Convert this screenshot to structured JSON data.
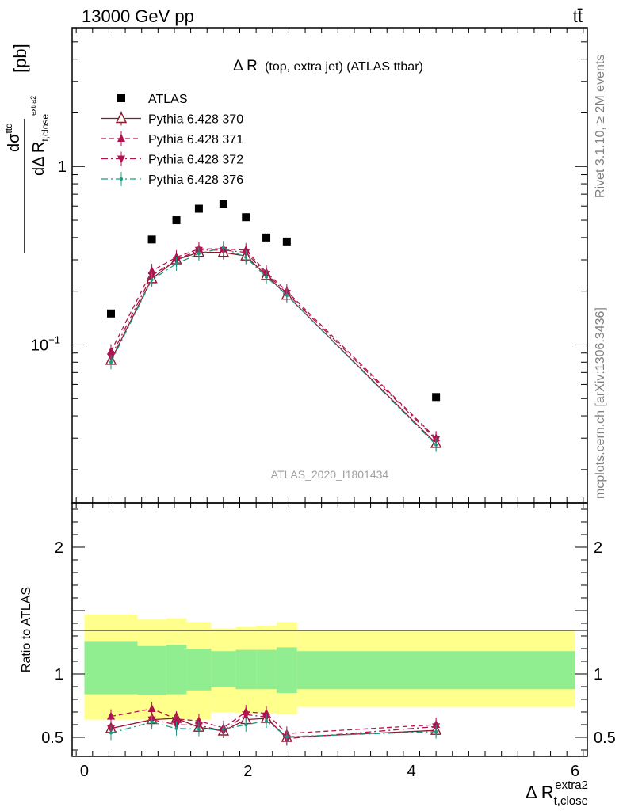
{
  "header": {
    "left_label": "13000 GeV pp",
    "right_label": "tt̄"
  },
  "side_labels": {
    "rivet": "Rivet 3.1.10, ≥ 2M events",
    "mcplots": "mcplots.cern.ch [arXiv:1306.3436]"
  },
  "chart_data": [
    {
      "type": "scatter",
      "panel": "main",
      "title_main": "Δ R",
      "title_detail": "(top, extra jet) (ATLAS ttbar)",
      "ylabel": {
        "num": "dσ",
        "num_sup": "ttd",
        "den": "dΔ R",
        "den_sub": "t,close",
        "den_sup": "extra2",
        "unit": "[pb]"
      },
      "yscale": "log",
      "ylim": [
        0.013,
        6.0
      ],
      "xlim": [
        -0.15,
        6.15
      ],
      "y_tick_labels": [
        {
          "value": 1,
          "base": "1",
          "exp": ""
        },
        {
          "value": 0.1,
          "base": "10",
          "exp": "−1"
        }
      ],
      "watermark": "ATLAS_2020_I1801434",
      "legend_position": "top-left",
      "series": [
        {
          "name": "ATLAS",
          "marker": "square",
          "color": "#000000",
          "x": [
            0.325,
            0.825,
            1.125,
            1.4,
            1.7,
            1.975,
            2.225,
            2.475,
            4.3
          ],
          "y": [
            0.15,
            0.39,
            0.5,
            0.58,
            0.62,
            0.52,
            0.4,
            0.38,
            0.051
          ]
        },
        {
          "name": "Pythia 6.428 370",
          "marker": "triangle-up-open",
          "line": "solid",
          "color": "#8b1a2f",
          "x": [
            0.325,
            0.825,
            1.125,
            1.4,
            1.7,
            1.975,
            2.225,
            2.475,
            4.3
          ],
          "y": [
            0.082,
            0.235,
            0.3,
            0.33,
            0.33,
            0.315,
            0.245,
            0.19,
            0.028
          ]
        },
        {
          "name": "Pythia 6.428 371",
          "marker": "triangle-up",
          "line": "dashed",
          "color": "#b0134f",
          "x": [
            0.325,
            0.825,
            1.125,
            1.4,
            1.7,
            1.975,
            2.225,
            2.475,
            4.3
          ],
          "y": [
            0.092,
            0.26,
            0.31,
            0.345,
            0.345,
            0.34,
            0.255,
            0.2,
            0.03
          ]
        },
        {
          "name": "Pythia 6.428 372",
          "marker": "triangle-down",
          "line": "dashdot",
          "color": "#b0134f",
          "x": [
            0.325,
            0.825,
            1.125,
            1.4,
            1.7,
            1.975,
            2.225,
            2.475,
            4.3
          ],
          "y": [
            0.086,
            0.245,
            0.3,
            0.34,
            0.34,
            0.33,
            0.25,
            0.195,
            0.0295
          ]
        },
        {
          "name": "Pythia 6.428 376",
          "marker": "dot",
          "line": "dashdot",
          "color": "#1a9a82",
          "x": [
            0.325,
            0.825,
            1.125,
            1.4,
            1.7,
            1.975,
            2.225,
            2.475,
            4.3
          ],
          "y": [
            0.08,
            0.232,
            0.285,
            0.325,
            0.35,
            0.31,
            0.24,
            0.19,
            0.0275
          ]
        }
      ]
    },
    {
      "type": "scatter",
      "panel": "ratio",
      "ylabel": "Ratio to ATLAS",
      "xlabel": {
        "main": "Δ R",
        "sub": "t,close",
        "sup": "extra2"
      },
      "ylim": [
        0.35,
        2.35
      ],
      "xlim": [
        -0.15,
        6.15
      ],
      "x_ticks": [
        0,
        2,
        4,
        6
      ],
      "y_ticks": [
        0.5,
        1,
        2
      ],
      "bands": [
        {
          "x0": 0.0,
          "x1": 0.65,
          "green": [
            0.84,
            1.26
          ],
          "yellow": [
            0.64,
            1.47
          ]
        },
        {
          "x0": 0.65,
          "x1": 1.0,
          "green": [
            0.835,
            1.22
          ],
          "yellow": [
            0.64,
            1.43
          ]
        },
        {
          "x0": 1.0,
          "x1": 1.25,
          "green": [
            0.84,
            1.23
          ],
          "yellow": [
            0.64,
            1.44
          ]
        },
        {
          "x0": 1.25,
          "x1": 1.55,
          "green": [
            0.87,
            1.2
          ],
          "yellow": [
            0.64,
            1.41
          ]
        },
        {
          "x0": 1.55,
          "x1": 1.85,
          "green": [
            0.9,
            1.18
          ],
          "yellow": [
            0.7,
            1.36
          ]
        },
        {
          "x0": 1.85,
          "x1": 2.1,
          "green": [
            0.88,
            1.19
          ],
          "yellow": [
            0.69,
            1.37
          ]
        },
        {
          "x0": 2.1,
          "x1": 2.35,
          "green": [
            0.88,
            1.19
          ],
          "yellow": [
            0.69,
            1.38
          ]
        },
        {
          "x0": 2.35,
          "x1": 2.6,
          "green": [
            0.85,
            1.21
          ],
          "yellow": [
            0.68,
            1.41
          ]
        },
        {
          "x0": 2.6,
          "x1": 6.0,
          "green": [
            0.88,
            1.18
          ],
          "yellow": [
            0.74,
            1.35
          ]
        }
      ],
      "series": [
        {
          "name": "Pythia 6.428 370",
          "marker": "triangle-up-open",
          "line": "solid",
          "color": "#8b1a2f",
          "x": [
            0.325,
            0.825,
            1.125,
            1.4,
            1.7,
            1.975,
            2.225,
            2.475,
            4.3
          ],
          "y": [
            0.57,
            0.64,
            0.65,
            0.58,
            0.55,
            0.64,
            0.65,
            0.5,
            0.555
          ]
        },
        {
          "name": "Pythia 6.428 371",
          "marker": "triangle-up",
          "line": "dashed",
          "color": "#b0134f",
          "x": [
            0.325,
            0.825,
            1.125,
            1.4,
            1.7,
            1.975,
            2.225,
            2.475,
            4.3
          ],
          "y": [
            0.665,
            0.725,
            0.645,
            0.63,
            0.575,
            0.7,
            0.69,
            0.53,
            0.6
          ]
        },
        {
          "name": "Pythia 6.428 372",
          "marker": "triangle-down",
          "line": "dashdot",
          "color": "#b0134f",
          "x": [
            0.325,
            0.825,
            1.125,
            1.4,
            1.7,
            1.975,
            2.225,
            2.475,
            4.3
          ],
          "y": [
            0.57,
            0.64,
            0.6,
            0.595,
            0.55,
            0.68,
            0.66,
            0.49,
            0.585
          ]
        },
        {
          "name": "Pythia 6.428 376",
          "marker": "dot",
          "line": "dashdot",
          "color": "#1a9a82",
          "x": [
            0.325,
            0.825,
            1.125,
            1.4,
            1.7,
            1.975,
            2.225,
            2.475,
            4.3
          ],
          "y": [
            0.535,
            0.62,
            0.57,
            0.565,
            0.565,
            0.6,
            0.63,
            0.505,
            0.545
          ]
        }
      ]
    }
  ]
}
